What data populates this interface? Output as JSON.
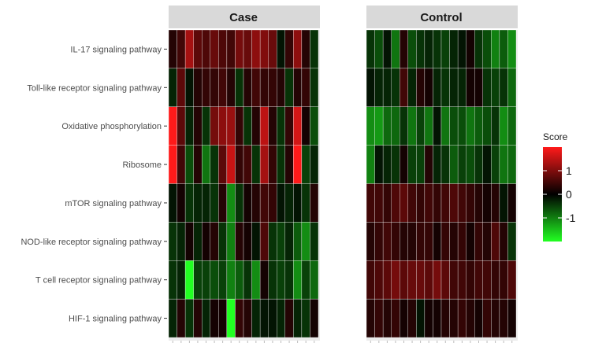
{
  "chart_data": {
    "type": "heatmap",
    "facets": [
      "Case",
      "Control"
    ],
    "rows": [
      "IL-17 signaling pathway",
      "Toll-like receptor signaling pathway",
      "Oxidative phosphorylation",
      "Ribosome",
      "mTOR signaling pathway",
      "NOD-like receptor signaling pathway",
      "T cell receptor signaling pathway",
      "HIF-1 signaling pathway"
    ],
    "n_columns_per_facet": 18,
    "values": {
      "Case": [
        [
          0.2,
          0.4,
          1.2,
          0.6,
          0.5,
          0.7,
          0.5,
          0.4,
          0.8,
          0.7,
          1.0,
          0.9,
          0.7,
          -0.1,
          0.3,
          1.0,
          0.2,
          -0.3
        ],
        [
          -0.2,
          0.6,
          -0.1,
          0.2,
          0.3,
          0.3,
          0.4,
          0.2,
          -0.3,
          0.2,
          0.4,
          0.3,
          0.3,
          0.2,
          -0.3,
          0.2,
          0.3,
          -0.3
        ],
        [
          2.0,
          0.6,
          -0.2,
          0.2,
          -0.3,
          0.8,
          1.0,
          1.1,
          0.3,
          -0.3,
          0.2,
          1.4,
          0.2,
          -0.3,
          0.3,
          1.6,
          0.1,
          -0.5
        ],
        [
          2.0,
          0.4,
          -0.5,
          0.2,
          -0.8,
          -0.3,
          0.6,
          1.5,
          0.3,
          0.4,
          -0.3,
          1.2,
          0.3,
          -0.3,
          0.2,
          2.0,
          -0.4,
          -0.2
        ],
        [
          -0.1,
          0.1,
          -0.3,
          -0.2,
          -0.2,
          -0.3,
          0.2,
          -1.0,
          -0.3,
          0.1,
          0.2,
          0.4,
          0.3,
          -0.1,
          -0.2,
          -0.1,
          -0.3,
          0.2
        ],
        [
          -0.3,
          -0.2,
          0.1,
          -0.2,
          0.1,
          0.2,
          -0.3,
          -0.9,
          0.2,
          0.1,
          -0.1,
          0.5,
          -0.3,
          -0.4,
          -0.2,
          -0.6,
          -1.0,
          -0.3
        ],
        [
          -0.3,
          -0.2,
          -2.0,
          -0.4,
          -0.4,
          -0.5,
          -0.4,
          -0.9,
          -0.6,
          -0.3,
          -1.0,
          0.1,
          -0.3,
          -0.4,
          -0.3,
          -1.0,
          -0.4,
          -0.7
        ],
        [
          -0.2,
          0.2,
          -0.3,
          0.2,
          -0.2,
          0.1,
          0.1,
          -2.0,
          0.3,
          0.2,
          -0.2,
          -0.1,
          -0.1,
          -0.2,
          0.2,
          -0.2,
          -0.3,
          0.1
        ]
      ],
      "Control": [
        [
          -0.3,
          -0.5,
          -0.1,
          -0.8,
          0.2,
          -0.5,
          -0.3,
          -0.2,
          -0.3,
          -0.4,
          -0.2,
          -0.1,
          0.1,
          -0.3,
          -0.5,
          -0.9,
          -0.6,
          -1.0
        ],
        [
          -0.1,
          -0.2,
          -0.2,
          -0.3,
          0.4,
          -0.2,
          0.2,
          0.1,
          -0.2,
          -0.3,
          -0.2,
          -0.2,
          0.1,
          0.1,
          -0.3,
          -0.4,
          -0.3,
          -0.7
        ],
        [
          -1.0,
          -1.1,
          -0.7,
          -0.7,
          -0.3,
          -0.8,
          -0.4,
          -0.8,
          -0.1,
          -0.8,
          -0.5,
          -0.5,
          -0.8,
          -0.6,
          -0.5,
          -0.3,
          -1.0,
          -0.7
        ],
        [
          -0.9,
          -0.1,
          -0.2,
          -0.3,
          0.1,
          -0.4,
          -0.4,
          0.2,
          -0.2,
          -0.3,
          -0.6,
          -0.4,
          -0.5,
          -0.3,
          -0.1,
          -0.4,
          -0.8,
          -0.7
        ],
        [
          0.4,
          0.4,
          0.3,
          0.5,
          0.6,
          0.4,
          0.3,
          0.4,
          0.3,
          0.4,
          0.5,
          0.4,
          0.3,
          0.2,
          0.1,
          0.2,
          -0.1,
          0.1
        ],
        [
          0.2,
          0.3,
          0.4,
          0.3,
          0.2,
          0.2,
          0.3,
          0.3,
          0.1,
          0.3,
          0.2,
          0.3,
          0.1,
          0.3,
          0.2,
          0.5,
          0.2,
          -0.3
        ],
        [
          0.4,
          0.5,
          0.6,
          0.8,
          0.6,
          0.7,
          0.7,
          0.6,
          0.8,
          0.6,
          0.4,
          0.4,
          0.3,
          0.4,
          0.4,
          0.3,
          0.3,
          0.5
        ],
        [
          0.2,
          0.3,
          0.2,
          0.3,
          0.1,
          0.2,
          -0.1,
          0.1,
          0.1,
          0.2,
          0.2,
          0.3,
          0.2,
          0.1,
          0.3,
          0.2,
          0.2,
          0.1
        ]
      ]
    },
    "legend": {
      "title": "Score",
      "ticks": [
        1,
        0,
        -1
      ],
      "tick_labels": [
        "1",
        "0",
        "-1"
      ],
      "range": [
        -2,
        2
      ],
      "colors": {
        "low": "#22ff22",
        "mid": "#000000",
        "high": "#ff1a1a"
      },
      "placement": "right"
    },
    "grid": true,
    "facet_strip_color": "#d9d9d9",
    "panel_background": "#ebebeb"
  }
}
